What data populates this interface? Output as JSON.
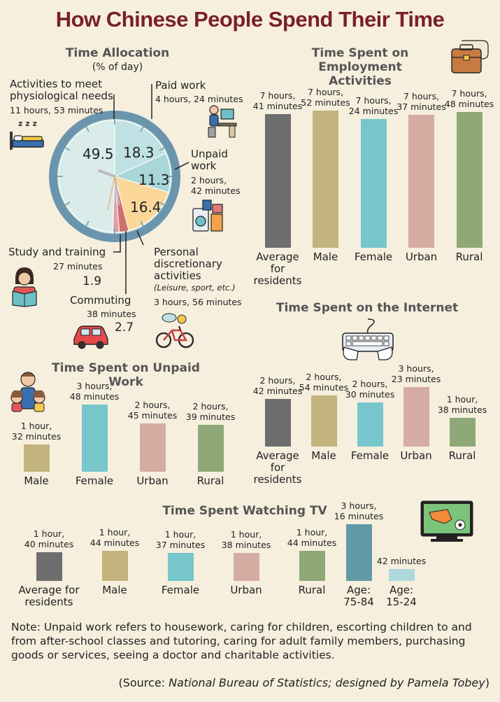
{
  "title": "How Chinese People Spend Their Time",
  "pie": {
    "title": "Time Allocation",
    "subtitle": "(% of day)",
    "slices": [
      {
        "key": "physio",
        "value": 49.5,
        "value_label": "49.5",
        "label": "Activities to meet physiological needs",
        "detail": "11 hours, 53 minutes",
        "color": "#f6efde"
      },
      {
        "key": "paid",
        "value": 18.3,
        "value_label": "18.3",
        "label": "Paid work",
        "detail": "4 hours, 24 minutes",
        "color": "#bfe1e3"
      },
      {
        "key": "unpaid",
        "value": 11.3,
        "value_label": "11.3",
        "label": "Unpaid work",
        "detail": "2 hours, 42 minutes",
        "color": "#a9d6d8"
      },
      {
        "key": "personal",
        "value": 16.4,
        "value_label": "16.4",
        "label": "Personal discretionary activities",
        "note": "(Leisure, sport, etc.)",
        "detail": "3 hours, 56 minutes",
        "color": "#fbd89a"
      },
      {
        "key": "commuting",
        "value": 2.7,
        "value_label": "2.7",
        "label": "Commuting",
        "detail": "38 minutes",
        "color": "#cf6e6e"
      },
      {
        "key": "study",
        "value": 1.9,
        "value_label": "1.9",
        "label": "Study and training",
        "detail": "27 minutes",
        "color": "#e0a0a8"
      }
    ],
    "label_lines": {
      "physio": [
        "Activities to meet",
        "physiological needs"
      ],
      "unpaid": [
        "Unpaid",
        "work"
      ],
      "unpaid_detail": [
        "2 hours,",
        "42 minutes"
      ],
      "personal": [
        "Personal",
        "discretionary",
        "activities"
      ]
    }
  },
  "colors": {
    "avg": "#6e6e6e",
    "male": "#c2b47c",
    "female": "#76c6cc",
    "urban": "#d4aca2",
    "rural": "#8fa877",
    "old": "#5f9aa6",
    "young": "#acd8dc",
    "title": "#7a1f2b"
  },
  "chart_data": [
    {
      "type": "bar",
      "title": "Time Spent on Employment Activities",
      "categories": [
        "Average for residents",
        "Male",
        "Female",
        "Urban",
        "Rural"
      ],
      "values": [
        461,
        472,
        444,
        457,
        468
      ],
      "value_labels": [
        [
          "7 hours,",
          "41 minutes"
        ],
        [
          "7 hours,",
          "52 minutes"
        ],
        [
          "7 hours,",
          "24 minutes"
        ],
        [
          "7 hours,",
          "37 minutes"
        ],
        [
          "7 hours,",
          "48 minutes"
        ]
      ],
      "unit": "minutes"
    },
    {
      "type": "bar",
      "title": "Time Spent on the Internet",
      "categories": [
        "Average for residents",
        "Male",
        "Female",
        "Urban",
        "Rural"
      ],
      "values": [
        162,
        174,
        150,
        203,
        98
      ],
      "value_labels": [
        [
          "2 hours,",
          "42 minutes"
        ],
        [
          "2 hours,",
          "54 minutes"
        ],
        [
          "2 hours,",
          "30 minutes"
        ],
        [
          "3 hours,",
          "23 minutes"
        ],
        [
          "1 hour,",
          "38 minutes"
        ]
      ],
      "unit": "minutes"
    },
    {
      "type": "bar",
      "title": "Time Spent on Unpaid Work",
      "categories": [
        "Male",
        "Female",
        "Urban",
        "Rural"
      ],
      "values": [
        92,
        228,
        165,
        159
      ],
      "value_labels": [
        [
          "1 hour,",
          "32 minutes"
        ],
        [
          "3 hours,",
          "48 minutes"
        ],
        [
          "2 hours,",
          "45 minutes"
        ],
        [
          "2 hours,",
          "39 minutes"
        ]
      ],
      "unit": "minutes"
    },
    {
      "type": "bar",
      "title": "Time Spent Watching TV",
      "categories": [
        "Average for residents",
        "Male",
        "Female",
        "Urban",
        "Rural",
        "Age: 75-84",
        "Age: 15-24"
      ],
      "values": [
        100,
        104,
        97,
        98,
        104,
        196,
        42
      ],
      "value_labels": [
        [
          "1 hour,",
          "40 minutes"
        ],
        [
          "1 hour,",
          "44 minutes"
        ],
        [
          "1 hour,",
          "37 minutes"
        ],
        [
          "1 hour,",
          "38 minutes"
        ],
        [
          "1 hour,",
          "44 minutes"
        ],
        [
          "3 hours,",
          "16 minutes"
        ],
        [
          "42 minutes"
        ]
      ],
      "unit": "minutes"
    }
  ],
  "cat_lines": {
    "employment": [
      [
        "Average",
        "for",
        "residents"
      ],
      [
        "Male"
      ],
      [
        "Female"
      ],
      [
        "Urban"
      ],
      [
        "Rural"
      ]
    ],
    "internet": [
      [
        "Average",
        "for",
        "residents"
      ],
      [
        "Male"
      ],
      [
        "Female"
      ],
      [
        "Urban"
      ],
      [
        "Rural"
      ]
    ],
    "unpaid": [
      [
        "Male"
      ],
      [
        "Female"
      ],
      [
        "Urban"
      ],
      [
        "Rural"
      ]
    ],
    "tv": [
      [
        "Average for",
        "residents"
      ],
      [
        "Male"
      ],
      [
        "Female"
      ],
      [
        "Urban"
      ],
      [
        "Rural"
      ],
      [
        "Age:",
        "75-84"
      ],
      [
        "Age:",
        "15-24"
      ]
    ]
  },
  "section_titles": {
    "employment": [
      "Time Spent  on",
      "Employment Activities"
    ]
  },
  "note": "Note: Unpaid work refers to housework, caring for children, escorting children to and from after-school classes and tutoring, caring for adult family members, purchasing goods or services, seeing a doctor and charitable activities.",
  "source": {
    "prefix": "(Source: ",
    "italic": "National Bureau of Statistics; designed by Pamela Tobey",
    "suffix": ")"
  },
  "icons": [
    "bed-icon",
    "desk-worker-icon",
    "laundry-icon",
    "reading-child-icon",
    "car-icon",
    "bicycle-icon",
    "briefcase-icon",
    "keyboard-icon",
    "family-icon",
    "tv-soccer-icon"
  ]
}
